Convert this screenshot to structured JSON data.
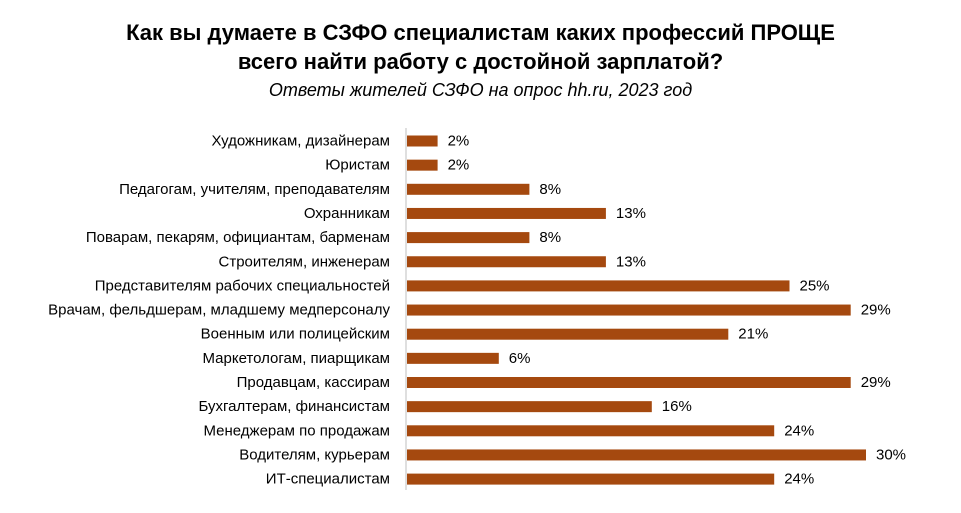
{
  "chart_data": {
    "type": "bar",
    "orientation": "horizontal",
    "title_line1": "Как вы думаете в СЗФО специалистам каких профессий ПРОЩЕ",
    "title_line2": "всего найти работу с достойной зарплатой?",
    "subtitle": "Ответы жителей СЗФО на опрос hh.ru, 2023 год",
    "categories": [
      "Художникам, дизайнерам",
      "Юристам",
      "Педагогам, учителям, преподавателям",
      "Охранникам",
      "Поварам, пекарям, официантам, барменам",
      "Строителям, инженерам",
      "Представителям рабочих специальностей",
      "Врачам, фельдшерам, младшему медперсоналу",
      "Военным или полицейским",
      "Маркетологам, пиарщикам",
      "Продавцам, кассирам",
      "Бухгалтерам, финансистам",
      "Менеджерам по продажам",
      "Водителям, курьерам",
      "ИТ-специалистам"
    ],
    "values": [
      2,
      2,
      8,
      13,
      8,
      13,
      25,
      29,
      21,
      6,
      29,
      16,
      24,
      30,
      24
    ],
    "value_labels": [
      "2%",
      "2%",
      "8%",
      "13%",
      "8%",
      "13%",
      "25%",
      "29%",
      "21%",
      "6%",
      "29%",
      "16%",
      "24%",
      "30%",
      "24%"
    ],
    "unit": "%",
    "xlim": [
      0,
      30
    ],
    "xlabel": "",
    "ylabel": "",
    "grid": false,
    "legend": "none",
    "bar_color": "#A5490F"
  }
}
